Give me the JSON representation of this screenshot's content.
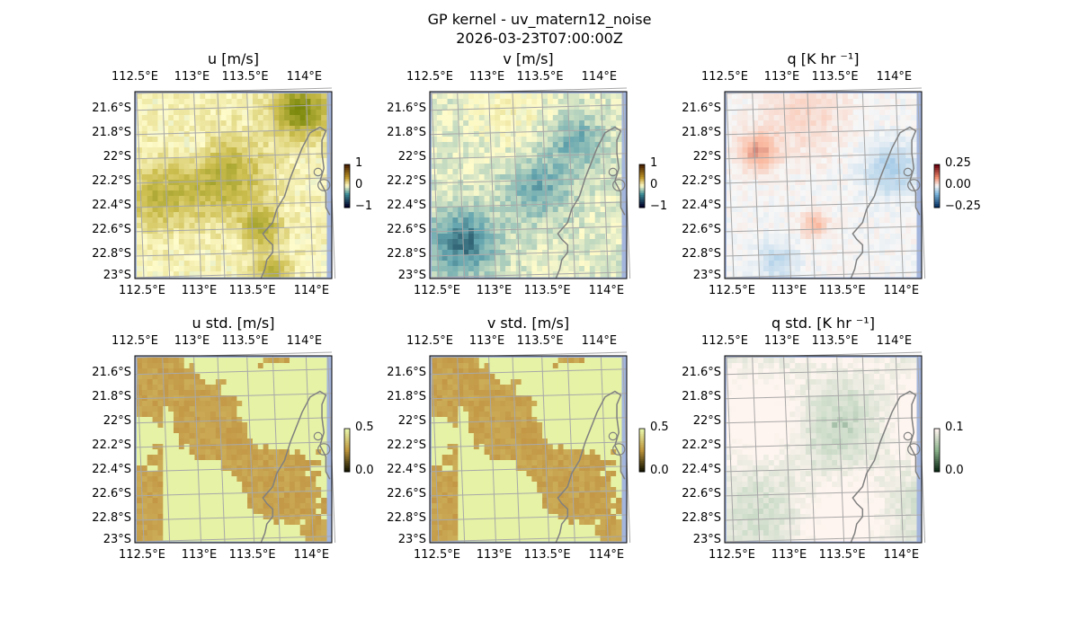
{
  "figure": {
    "title_line1": "GP kernel - uv_matern12_noise",
    "title_line2": "2026-03-23T07:00:00Z"
  },
  "chart_data": [
    {
      "type": "heatmap",
      "title": "u [m/s]",
      "field": "u",
      "colormap": "brown-yellow-teal diverging",
      "colorbar_ticks": [
        "1",
        "0",
        "−1"
      ],
      "colorbar_range": [
        -1,
        1
      ],
      "lon_ticks": [
        "112.5°E",
        "113°E",
        "113.5°E",
        "114°E"
      ],
      "lat_ticks": [
        "21.6°S",
        "21.8°S",
        "22°S",
        "22.2°S",
        "22.4°S",
        "22.6°S",
        "22.8°S",
        "23°S"
      ],
      "extent": {
        "lon": [
          112.5,
          114.3
        ],
        "lat": [
          -23.0,
          -21.5
        ]
      }
    },
    {
      "type": "heatmap",
      "title": "v [m/s]",
      "field": "v",
      "colormap": "brown-yellow-teal diverging",
      "colorbar_ticks": [
        "1",
        "0",
        "−1"
      ],
      "colorbar_range": [
        -1,
        1
      ],
      "lon_ticks": [
        "112.5°E",
        "113°E",
        "113.5°E",
        "114°E"
      ],
      "lat_ticks": [
        "21.6°S",
        "21.8°S",
        "22°S",
        "22.2°S",
        "22.4°S",
        "22.6°S",
        "22.8°S",
        "23°S"
      ],
      "extent": {
        "lon": [
          112.5,
          114.3
        ],
        "lat": [
          -23.0,
          -21.5
        ]
      }
    },
    {
      "type": "heatmap",
      "title": "q [K hr ⁻¹]",
      "field": "q",
      "colormap": "red-white-blue diverging",
      "colorbar_ticks": [
        "0.25",
        "0.00",
        "−0.25"
      ],
      "colorbar_range": [
        -0.3,
        0.3
      ],
      "lon_ticks": [
        "112.5°E",
        "113°E",
        "113.5°E",
        "114°E"
      ],
      "lat_ticks": [
        "21.6°S",
        "21.8°S",
        "22°S",
        "22.2°S",
        "22.4°S",
        "22.6°S",
        "22.8°S",
        "23°S"
      ],
      "extent": {
        "lon": [
          112.5,
          114.3
        ],
        "lat": [
          -23.0,
          -21.5
        ]
      }
    },
    {
      "type": "heatmap",
      "title": "u std. [m/s]",
      "field": "ustd",
      "colormap": "yellow-green to brown sequential",
      "colorbar_ticks": [
        "0.5",
        "0.0"
      ],
      "colorbar_range": [
        0,
        0.5
      ],
      "lon_ticks": [
        "112.5°E",
        "113°E",
        "113.5°E",
        "114°E"
      ],
      "lat_ticks": [
        "21.6°S",
        "21.8°S",
        "22°S",
        "22.2°S",
        "22.4°S",
        "22.6°S",
        "22.8°S",
        "23°S"
      ],
      "extent": {
        "lon": [
          112.5,
          114.3
        ],
        "lat": [
          -23.0,
          -21.5
        ]
      }
    },
    {
      "type": "heatmap",
      "title": "v std. [m/s]",
      "field": "vstd",
      "colormap": "yellow-green to brown sequential",
      "colorbar_ticks": [
        "0.5",
        "0.0"
      ],
      "colorbar_range": [
        0,
        0.5
      ],
      "lon_ticks": [
        "112.5°E",
        "113°E",
        "113.5°E",
        "114°E"
      ],
      "lat_ticks": [
        "21.6°S",
        "21.8°S",
        "22°S",
        "22.2°S",
        "22.4°S",
        "22.6°S",
        "22.8°S",
        "23°S"
      ],
      "extent": {
        "lon": [
          112.5,
          114.3
        ],
        "lat": [
          -23.0,
          -21.5
        ]
      }
    },
    {
      "type": "heatmap",
      "title": "q std. [K hr ⁻¹]",
      "field": "qstd",
      "colormap": "pink-white to green sequential",
      "colorbar_ticks": [
        "0.1",
        "0.0"
      ],
      "colorbar_range": [
        0,
        0.1
      ],
      "lon_ticks": [
        "112.5°E",
        "113°E",
        "113.5°E",
        "114°E"
      ],
      "lat_ticks": [
        "21.6°S",
        "21.8°S",
        "22°S",
        "22.2°S",
        "22.4°S",
        "22.6°S",
        "22.8°S",
        "23°S"
      ],
      "extent": {
        "lon": [
          112.5,
          114.3
        ],
        "lat": [
          -23.0,
          -21.5
        ]
      }
    }
  ],
  "colors": {
    "ocean": "#a3b5dc",
    "gridlines": "#a8a8a8",
    "coastline": "#808080"
  }
}
